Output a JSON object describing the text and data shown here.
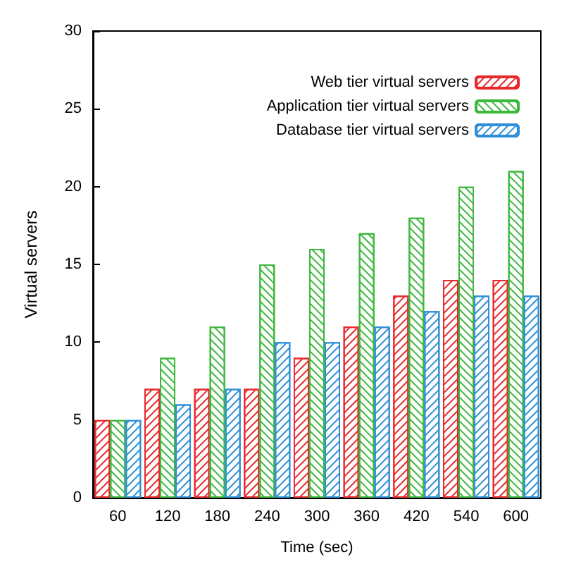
{
  "chart_data": {
    "type": "bar",
    "xlabel": "Time (sec)",
    "ylabel": "Virtual servers",
    "categories": [
      "60",
      "120",
      "180",
      "240",
      "300",
      "360",
      "420",
      "540",
      "600"
    ],
    "series": [
      {
        "name": "Web tier virtual servers",
        "color": "#e8292c",
        "values": [
          5,
          7,
          7,
          7,
          9,
          11,
          13,
          14,
          14
        ]
      },
      {
        "name": "Application tier virtual servers",
        "color": "#3cb83c",
        "values": [
          5,
          9,
          11,
          15,
          16,
          17,
          18,
          20,
          21
        ]
      },
      {
        "name": "Database tier virtual servers",
        "color": "#2e8fd8",
        "values": [
          5,
          6,
          7,
          10,
          10,
          11,
          12,
          13,
          13
        ]
      }
    ],
    "ylim": [
      0,
      30
    ],
    "yticks": [
      0,
      5,
      10,
      15,
      20,
      25,
      30
    ],
    "grid": false,
    "legend": "top right"
  }
}
